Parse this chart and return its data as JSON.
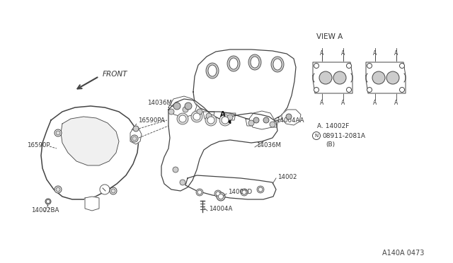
{
  "bg_color": "#ffffff",
  "line_color": "#444444",
  "diagram_ref": "A140A 0473",
  "view_a_text": "VIEW A",
  "part_A_label": "A. 14002F",
  "part_N_label": "08911-2081A",
  "part_B_note": "(B)"
}
